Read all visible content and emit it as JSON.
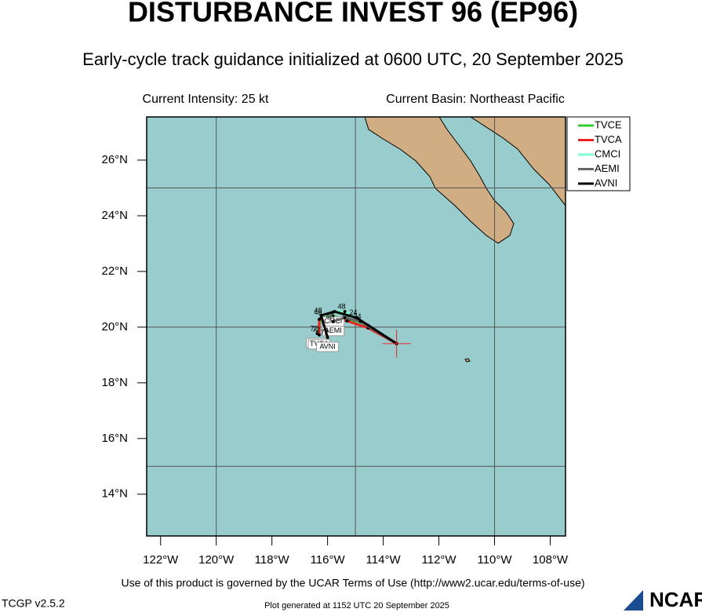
{
  "chart_data": {
    "type": "track-map",
    "title": "DISTURBANCE INVEST 96 (EP96)",
    "subtitle": "Early-cycle track guidance initialized at 0600 UTC, 20 September 2025",
    "intensity": "Current Intensity: 25 kt",
    "basin": "Current Basin: Northeast Pacific",
    "terms": "Use of this product is governed by the UCAR Terms of Use (http://www2.ucar.edu/terms-of-use)",
    "version": "TCGP v2.5.2",
    "generated": "Plot generated at 1152 UTC   20 September 2025",
    "logo": "NCAR",
    "xlim": [
      -122.5,
      -107.45
    ],
    "ylim": [
      12.5,
      27.55
    ],
    "xticks": [
      {
        "value": -122,
        "label": "122°W"
      },
      {
        "value": -120,
        "label": "120°W"
      },
      {
        "value": -118,
        "label": "118°W"
      },
      {
        "value": -116,
        "label": "116°W"
      },
      {
        "value": -114,
        "label": "114°W"
      },
      {
        "value": -112,
        "label": "112°W"
      },
      {
        "value": -110,
        "label": "110°W"
      },
      {
        "value": -108,
        "label": "108°W"
      }
    ],
    "yticks": [
      {
        "value": 14,
        "label": "14°N"
      },
      {
        "value": 16,
        "label": "16°N"
      },
      {
        "value": 18,
        "label": "18°N"
      },
      {
        "value": 20,
        "label": "20°N"
      },
      {
        "value": 22,
        "label": "22°N"
      },
      {
        "value": 24,
        "label": "24°N"
      },
      {
        "value": 26,
        "label": "26°N"
      }
    ],
    "x_grid": [
      -120,
      -115,
      -110
    ],
    "y_grid": [
      15,
      20,
      25
    ],
    "initial_position": {
      "lon": -113.52,
      "lat": 19.41
    },
    "series": [
      {
        "name": "TVCE",
        "color": "#33cc33",
        "lon": [
          -113.52,
          -114.54,
          -115.24,
          -115.8,
          -116.23,
          -116.37
        ],
        "lat": [
          19.41,
          19.97,
          20.25,
          20.39,
          20.34,
          19.77
        ],
        "hours": [
          null,
          null,
          "24",
          null,
          "48",
          "72"
        ]
      },
      {
        "name": "TVCA",
        "color": "#ee2222",
        "lon": [
          -113.52,
          -114.54,
          -115.3,
          -115.85,
          -116.3,
          -116.3
        ],
        "lat": [
          19.41,
          19.97,
          20.22,
          20.33,
          20.28,
          19.72
        ],
        "hours": [
          null,
          null,
          null,
          null,
          null,
          "72"
        ]
      },
      {
        "name": "CMCI",
        "color": "#7fffd4",
        "lon": [
          -113.52,
          -114.54,
          -114.96,
          -115.38,
          -115.8
        ],
        "lat": [
          19.41,
          20.06,
          20.34,
          20.56,
          20.54
        ],
        "hours": [
          null,
          null,
          null,
          "48",
          null
        ]
      },
      {
        "name": "AEMI",
        "color": "#666666",
        "lon": [
          -113.52,
          -114.82,
          -115.38,
          -115.8
        ],
        "lat": [
          19.41,
          20.2,
          20.34,
          20.2
        ],
        "hours": [
          null,
          "24",
          null,
          "48"
        ]
      },
      {
        "name": "AVNI",
        "color": "#000000",
        "lon": [
          -113.52,
          -114.96,
          -115.75,
          -116.23,
          -116.0
        ],
        "lat": [
          19.41,
          20.34,
          20.56,
          20.42,
          19.63
        ],
        "hours": [
          null,
          "24",
          null,
          "48",
          "72"
        ]
      }
    ]
  }
}
